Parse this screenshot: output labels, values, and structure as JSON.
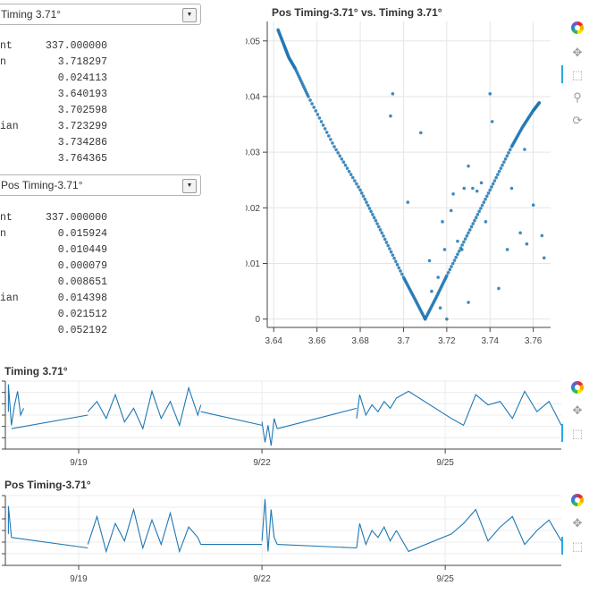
{
  "select1": {
    "value": "Timing 3.71°"
  },
  "stats1": [
    {
      "label": "nt",
      "value": "337.000000"
    },
    {
      "label": "n",
      "value": "3.718297"
    },
    {
      "label": "",
      "value": "0.024113"
    },
    {
      "label": "",
      "value": "3.640193"
    },
    {
      "label": "",
      "value": "3.702598"
    },
    {
      "label": "ian",
      "value": "3.723299"
    },
    {
      "label": "",
      "value": "3.734286"
    },
    {
      "label": "",
      "value": "3.764365"
    }
  ],
  "select2": {
    "value": "Pos Timing-3.71°"
  },
  "stats2": [
    {
      "label": "nt",
      "value": "337.000000"
    },
    {
      "label": "n",
      "value": "0.015924"
    },
    {
      "label": "",
      "value": "0.010449"
    },
    {
      "label": "",
      "value": "0.000079"
    },
    {
      "label": "",
      "value": "0.008651"
    },
    {
      "label": "ian",
      "value": "0.014398"
    },
    {
      "label": "",
      "value": "0.021512"
    },
    {
      "label": "",
      "value": "0.052192"
    }
  ],
  "scatter": {
    "title": "Pos Timing-3.71° vs. Timing 3.71°"
  },
  "ts1": {
    "title": "Timing 3.71°"
  },
  "ts2": {
    "title": "Pos Timing-3.71°"
  },
  "toolbar": {
    "tools": [
      "bokeh-logo-icon",
      "pan-icon",
      "box-zoom-icon",
      "wheel-zoom-icon",
      "reset-icon"
    ],
    "active_color": "#26aae1"
  },
  "colors": {
    "series": "#1f77b4"
  },
  "chart_data": [
    {
      "type": "scatter",
      "title": "Pos Timing-3.71° vs. Timing 3.71°",
      "xlabel": "",
      "ylabel": "",
      "xlim": [
        3.637,
        3.768
      ],
      "ylim": [
        -0.0015,
        0.0535
      ],
      "x_ticks": [
        "3.64",
        "3.66",
        "3.68",
        "3.7",
        "3.72",
        "3.74",
        "3.76"
      ],
      "y_ticks": [
        "0",
        "0.01",
        "0.02",
        "0.03",
        "0.04",
        "0.05"
      ],
      "grid": true,
      "line_point_sample": {
        "x": [
          3.642,
          3.645,
          3.647,
          3.65,
          3.656,
          3.668,
          3.68,
          3.69,
          3.7,
          3.705,
          3.71,
          3.715,
          3.72,
          3.73,
          3.74,
          3.75,
          3.755,
          3.76,
          3.763
        ],
        "y": [
          0.052,
          0.049,
          0.047,
          0.045,
          0.04,
          0.031,
          0.0232,
          0.0155,
          0.0075,
          0.0038,
          0.0,
          0.0038,
          0.0078,
          0.0155,
          0.0232,
          0.031,
          0.0345,
          0.0375,
          0.039
        ]
      },
      "outliers": {
        "x": [
          3.695,
          3.694,
          3.702,
          3.708,
          3.712,
          3.716,
          3.718,
          3.719,
          3.72,
          3.723,
          3.725,
          3.727,
          3.728,
          3.73,
          3.73,
          3.732,
          3.734,
          3.736,
          3.738,
          3.74,
          3.741,
          3.744,
          3.748,
          3.75,
          3.754,
          3.756,
          3.757,
          3.76,
          3.764,
          3.765,
          3.71,
          3.713,
          3.717,
          3.722
        ],
        "y": [
          0.0405,
          0.0365,
          0.021,
          0.0335,
          0.0105,
          0.0075,
          0.0175,
          0.0125,
          0.0,
          0.0225,
          0.014,
          0.0125,
          0.0235,
          0.003,
          0.0275,
          0.0235,
          0.023,
          0.0245,
          0.0175,
          0.0405,
          0.0355,
          0.0055,
          0.0125,
          0.0235,
          0.0155,
          0.0305,
          0.0135,
          0.0205,
          0.015,
          0.011,
          0.0,
          0.005,
          0.002,
          0.0195
        ]
      }
    },
    {
      "type": "line",
      "title": "Timing 3.71°",
      "x_ticks": [
        "9/19",
        "9/22",
        "9/25"
      ],
      "x_day_range": [
        17.8,
        26.9
      ],
      "grid": true,
      "segments": [
        {
          "x": [
            17.85,
            17.85,
            17.9,
            17.95,
            18.0,
            18.05,
            18.1
          ],
          "y": [
            0.55,
            0.95,
            0.35,
            0.65,
            0.85,
            0.5,
            0.6
          ]
        },
        {
          "x": [
            17.9,
            19.15
          ],
          "y": [
            0.3,
            0.5
          ]
        },
        {
          "x": [
            19.15,
            19.3,
            19.45,
            19.6,
            19.75,
            19.9,
            20.05,
            20.2,
            20.35,
            20.5,
            20.65,
            20.8,
            20.95,
            21.0
          ],
          "y": [
            0.55,
            0.7,
            0.45,
            0.8,
            0.4,
            0.6,
            0.3,
            0.85,
            0.45,
            0.7,
            0.35,
            0.9,
            0.5,
            0.65
          ]
        },
        {
          "x": [
            21.0,
            22.0
          ],
          "y": [
            0.55,
            0.35
          ]
        },
        {
          "x": [
            22.0,
            22.05,
            22.1,
            22.15,
            22.2,
            22.25
          ],
          "y": [
            0.4,
            0.1,
            0.35,
            0.05,
            0.45,
            0.3
          ]
        },
        {
          "x": [
            22.25,
            23.55
          ],
          "y": [
            0.3,
            0.6
          ]
        },
        {
          "x": [
            23.55,
            23.6,
            23.7,
            23.8,
            23.9,
            24.0,
            24.1,
            24.2
          ],
          "y": [
            0.45,
            0.8,
            0.5,
            0.65,
            0.55,
            0.7,
            0.6,
            0.75
          ]
        },
        {
          "x": [
            24.2,
            24.4,
            25.1,
            25.3,
            25.5,
            25.7,
            25.9,
            26.1,
            26.3,
            26.5,
            26.7,
            26.9
          ],
          "y": [
            0.75,
            0.85,
            0.45,
            0.35,
            0.8,
            0.65,
            0.7,
            0.45,
            0.85,
            0.55,
            0.7,
            0.35
          ]
        }
      ]
    },
    {
      "type": "line",
      "title": "Pos Timing-3.71°",
      "x_ticks": [
        "9/19",
        "9/22",
        "9/25"
      ],
      "x_day_range": [
        17.8,
        26.9
      ],
      "grid": true,
      "segments": [
        {
          "x": [
            17.85,
            17.85,
            17.9
          ],
          "y": [
            0.45,
            0.85,
            0.4
          ]
        },
        {
          "x": [
            17.9,
            19.15
          ],
          "y": [
            0.4,
            0.25
          ]
        },
        {
          "x": [
            19.15,
            19.3,
            19.45,
            19.6,
            19.75,
            19.9,
            20.05,
            20.2,
            20.35,
            20.5,
            20.65,
            20.8,
            20.95,
            21.0
          ],
          "y": [
            0.3,
            0.7,
            0.2,
            0.6,
            0.35,
            0.8,
            0.25,
            0.65,
            0.3,
            0.75,
            0.2,
            0.55,
            0.4,
            0.3
          ]
        },
        {
          "x": [
            21.0,
            22.0
          ],
          "y": [
            0.3,
            0.3
          ]
        },
        {
          "x": [
            22.0,
            22.05,
            22.1,
            22.15,
            22.2,
            22.25
          ],
          "y": [
            0.35,
            0.95,
            0.2,
            0.8,
            0.4,
            0.3
          ]
        },
        {
          "x": [
            22.25,
            23.55
          ],
          "y": [
            0.3,
            0.25
          ]
        },
        {
          "x": [
            23.55,
            23.6,
            23.7,
            23.8,
            23.9,
            24.0,
            24.1,
            24.2
          ],
          "y": [
            0.25,
            0.6,
            0.3,
            0.5,
            0.4,
            0.55,
            0.35,
            0.5
          ]
        },
        {
          "x": [
            24.2,
            24.4,
            25.1,
            25.3,
            25.5,
            25.7,
            25.9,
            26.1,
            26.3,
            26.5,
            26.7,
            26.9
          ],
          "y": [
            0.5,
            0.2,
            0.45,
            0.6,
            0.8,
            0.35,
            0.55,
            0.7,
            0.3,
            0.5,
            0.65,
            0.35
          ]
        }
      ]
    }
  ]
}
